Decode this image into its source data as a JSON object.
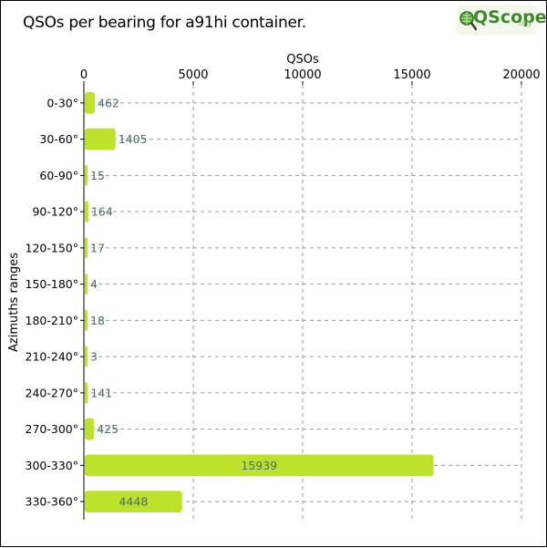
{
  "header": {
    "title": "QSOs per bearing for a91hi container.",
    "logo_text": "QScope",
    "logo_suffix": ".org"
  },
  "colors": {
    "bar": "#bde22c",
    "grid": "#999999",
    "value_label": "#4a6a6a",
    "logo_green": "#3a8a2a"
  },
  "chart_data": {
    "type": "bar",
    "orientation": "horizontal",
    "title": "QSOs per bearing for a91hi container.",
    "xlabel": "QSOs",
    "ylabel": "Azimuths ranges",
    "xlim": [
      0,
      20000
    ],
    "x_ticks": [
      0,
      5000,
      10000,
      15000,
      20000
    ],
    "x_axis_position": "top",
    "grid": true,
    "categories": [
      "0-30°",
      "30-60°",
      "60-90°",
      "90-120°",
      "120-150°",
      "150-180°",
      "180-210°",
      "210-240°",
      "240-270°",
      "270-300°",
      "300-330°",
      "330-360°"
    ],
    "values": [
      462,
      1405,
      15,
      164,
      17,
      4,
      18,
      3,
      141,
      425,
      15939,
      4448
    ]
  }
}
